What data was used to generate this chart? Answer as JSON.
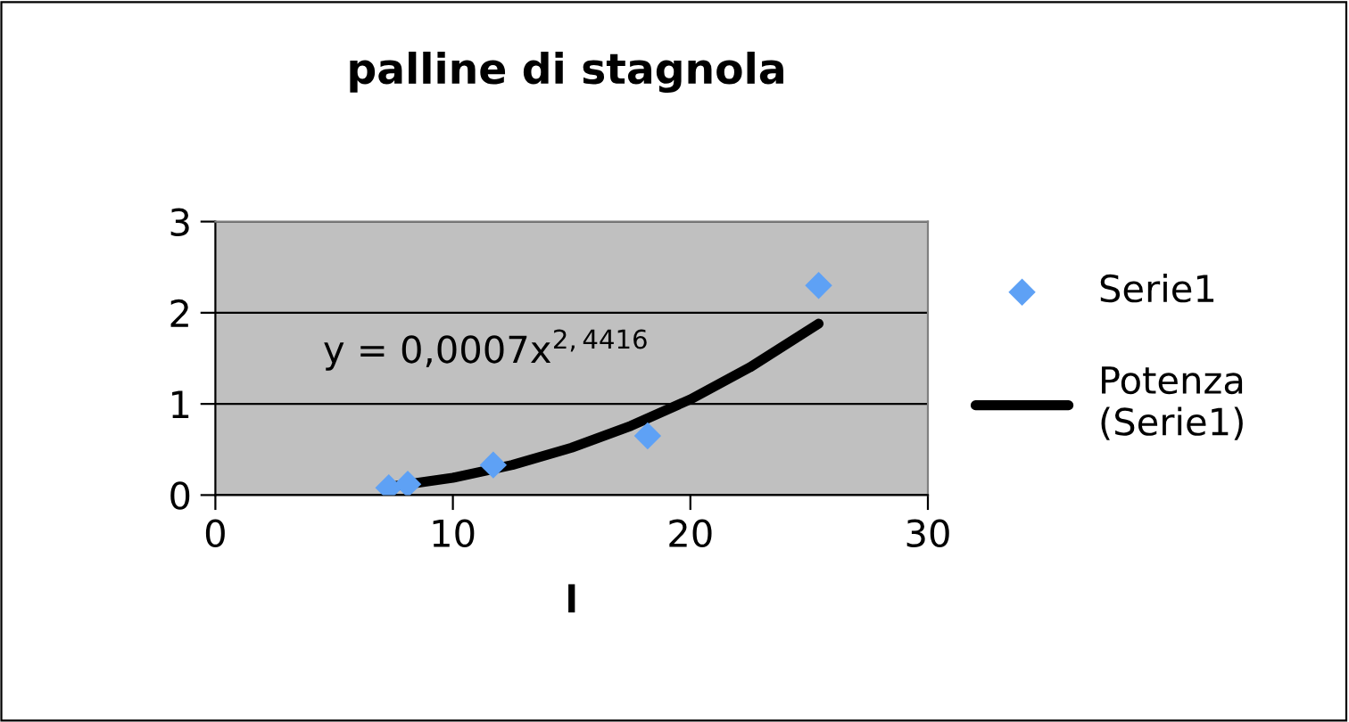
{
  "chart_data": {
    "type": "scatter",
    "title": "palline di stagnola",
    "xlabel": "l",
    "series": [
      {
        "name": "Serie1",
        "color": "#5ea1f5",
        "marker": "diamond",
        "x": [
          7.3,
          8.1,
          11.7,
          18.2,
          25.4
        ],
        "values": [
          0.08,
          0.12,
          0.33,
          0.65,
          2.3
        ]
      },
      {
        "name": "Potenza (Serie1)",
        "type": "line",
        "color": "#000000",
        "line_style": "solid",
        "x": [
          7.3,
          10,
          12.5,
          15,
          17.5,
          20,
          22.5,
          25.4
        ],
        "values": [
          0.09,
          0.19,
          0.33,
          0.52,
          0.76,
          1.05,
          1.4,
          1.88
        ]
      }
    ],
    "annotations": [
      "y = 0,0007x$^{2,4416}$"
    ],
    "xlim": [
      0,
      30
    ],
    "xticks": [
      0,
      10,
      20,
      30
    ],
    "ylim": [
      0,
      3
    ],
    "yticks": [
      0,
      1,
      2,
      3
    ],
    "grid": "y",
    "legend": "right"
  }
}
